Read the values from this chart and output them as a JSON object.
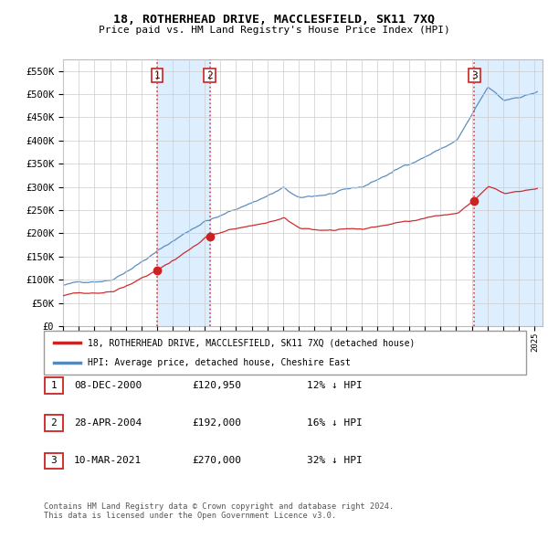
{
  "title": "18, ROTHERHEAD DRIVE, MACCLESFIELD, SK11 7XQ",
  "subtitle": "Price paid vs. HM Land Registry's House Price Index (HPI)",
  "ylim": [
    0,
    575000
  ],
  "ytick_vals": [
    0,
    50000,
    100000,
    150000,
    200000,
    250000,
    300000,
    350000,
    400000,
    450000,
    500000,
    550000
  ],
  "ytick_labels": [
    "£0",
    "£50K",
    "£100K",
    "£150K",
    "£200K",
    "£250K",
    "£300K",
    "£350K",
    "£400K",
    "£450K",
    "£500K",
    "£550K"
  ],
  "hpi_color": "#5588bb",
  "price_color": "#cc2222",
  "sale1_date": 2001.0,
  "sale1_price": 120950,
  "sale2_date": 2004.33,
  "sale2_price": 192000,
  "sale3_date": 2021.17,
  "sale3_price": 270000,
  "legend_label_price": "18, ROTHERHEAD DRIVE, MACCLESFIELD, SK11 7XQ (detached house)",
  "legend_label_hpi": "HPI: Average price, detached house, Cheshire East",
  "table_rows": [
    {
      "num": "1",
      "date": "08-DEC-2000",
      "price": "£120,950",
      "pct": "12% ↓ HPI"
    },
    {
      "num": "2",
      "date": "28-APR-2004",
      "price": "£192,000",
      "pct": "16% ↓ HPI"
    },
    {
      "num": "3",
      "date": "10-MAR-2021",
      "price": "£270,000",
      "pct": "32% ↓ HPI"
    }
  ],
  "footnote": "Contains HM Land Registry data © Crown copyright and database right 2024.\nThis data is licensed under the Open Government Licence v3.0.",
  "background_color": "#ffffff",
  "plot_bg_color": "#ffffff",
  "grid_color": "#cccccc",
  "span_color": "#ddeeff",
  "vline_color": "#dd4444"
}
